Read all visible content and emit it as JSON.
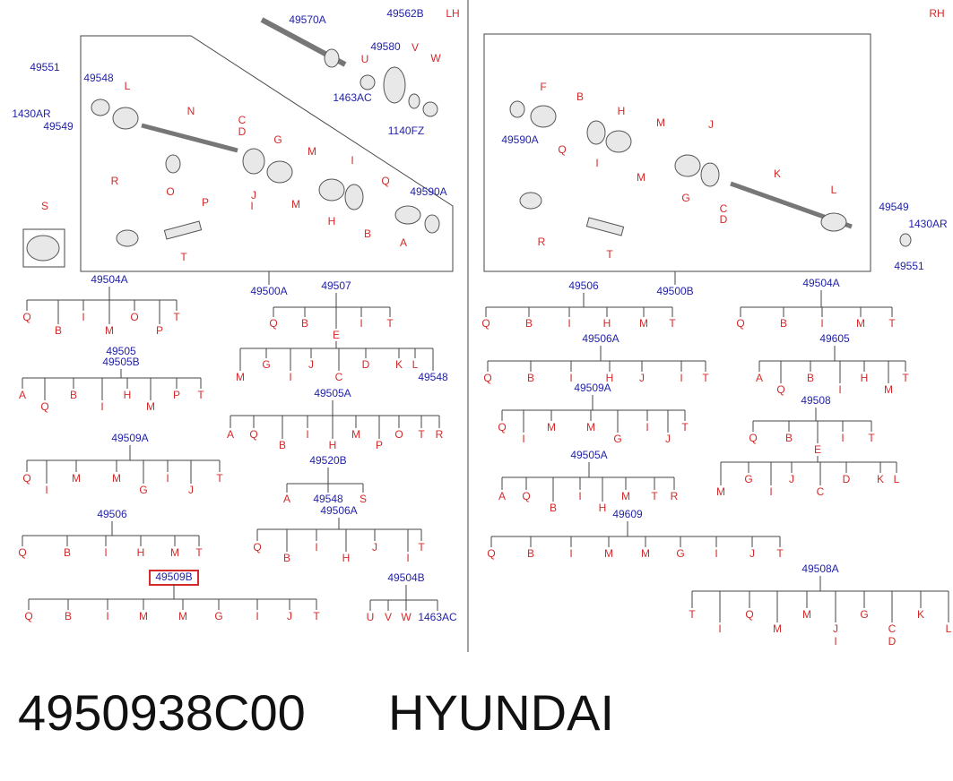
{
  "header": {
    "lh": "LH",
    "rh": "RH"
  },
  "lh_diagram": {
    "part_numbers": [
      "49570A",
      "49562B",
      "49580",
      "1463AC",
      "1140FZ",
      "49551",
      "1430AR",
      "49549",
      "49548",
      "49590A",
      "49500A"
    ],
    "letters": [
      "U",
      "V",
      "W",
      "L",
      "N",
      "C",
      "D",
      "G",
      "M",
      "I",
      "Q",
      "O",
      "P",
      "J",
      "I",
      "M",
      "H",
      "B",
      "A",
      "R",
      "T",
      "S"
    ]
  },
  "rh_diagram": {
    "part_numbers": [
      "49590A",
      "49500B",
      "49549",
      "1430AR",
      "49551"
    ],
    "letters": [
      "F",
      "B",
      "Q",
      "I",
      "H",
      "M",
      "M",
      "J",
      "G",
      "K",
      "C",
      "D",
      "L",
      "R",
      "T"
    ]
  },
  "trees": [
    {
      "root": "49504A",
      "children": [
        "Q",
        "B",
        "I",
        "M",
        "O",
        "P",
        "T"
      ]
    },
    {
      "root": [
        "49505",
        "49505B"
      ],
      "children": [
        "A",
        "Q",
        "B",
        "I",
        "H",
        "M",
        "P",
        "T"
      ]
    },
    {
      "root": "49509A",
      "children": [
        "Q",
        "I",
        "M",
        "M",
        "G",
        "I",
        "J",
        "T"
      ]
    },
    {
      "root": "49506",
      "children": [
        "Q",
        "B",
        "I",
        "H",
        "M",
        "T"
      ]
    },
    {
      "root": "49509B",
      "highlighted": true,
      "children": [
        "Q",
        "B",
        "I",
        "M",
        "M",
        "G",
        "I",
        "J",
        "T"
      ]
    },
    {
      "root": "49507",
      "children": [
        "Q",
        "B",
        "E",
        "I",
        "T"
      ]
    },
    {
      "children": [
        "M",
        "G",
        "I",
        "J",
        "C",
        "D",
        "K",
        "L",
        "49548"
      ]
    },
    {
      "root": "49505A",
      "children": [
        "A",
        "Q",
        "B",
        "I",
        "H",
        "M",
        "P",
        "O",
        "T",
        "R"
      ]
    },
    {
      "root": "49520B",
      "children": [
        "A",
        "49548",
        "S"
      ]
    },
    {
      "root": "49506A",
      "children": [
        "Q",
        "B",
        "I",
        "H",
        "J",
        "I",
        "T"
      ]
    },
    {
      "root": "49504B",
      "children": [
        "U",
        "V",
        "W",
        "1463AC"
      ]
    },
    {
      "root": "49506",
      "children": [
        "Q",
        "B",
        "I",
        "H",
        "M",
        "T"
      ]
    },
    {
      "root": "49506A",
      "children": [
        "Q",
        "B",
        "I",
        "H",
        "J",
        "I",
        "T"
      ]
    },
    {
      "root": "49509A",
      "children": [
        "Q",
        "I",
        "M",
        "M",
        "G",
        "I",
        "J",
        "T"
      ]
    },
    {
      "root": "49505A",
      "children": [
        "A",
        "Q",
        "B",
        "I",
        "H",
        "M",
        "T",
        "R"
      ]
    },
    {
      "root": "49609",
      "children": [
        "Q",
        "B",
        "I",
        "M",
        "M",
        "G",
        "I",
        "J",
        "T"
      ]
    },
    {
      "root": "49504A",
      "children": [
        "Q",
        "B",
        "I",
        "M",
        "T"
      ]
    },
    {
      "root": "49605",
      "children": [
        "A",
        "Q",
        "B",
        "I",
        "H",
        "M",
        "T"
      ]
    },
    {
      "root": "49508",
      "children": [
        "Q",
        "B",
        "E",
        "I",
        "T"
      ]
    },
    {
      "children": [
        "M",
        "G",
        "I",
        "J",
        "C",
        "D",
        "K",
        "L"
      ]
    },
    {
      "root": "49508A",
      "children": [
        "T",
        "I",
        "Q",
        "M",
        "M",
        [
          "J",
          "I"
        ],
        "G",
        [
          "C",
          "D"
        ],
        "K",
        "L"
      ]
    }
  ],
  "footer": {
    "part_number": "4950938C00",
    "brand": "HYUNDAI"
  }
}
